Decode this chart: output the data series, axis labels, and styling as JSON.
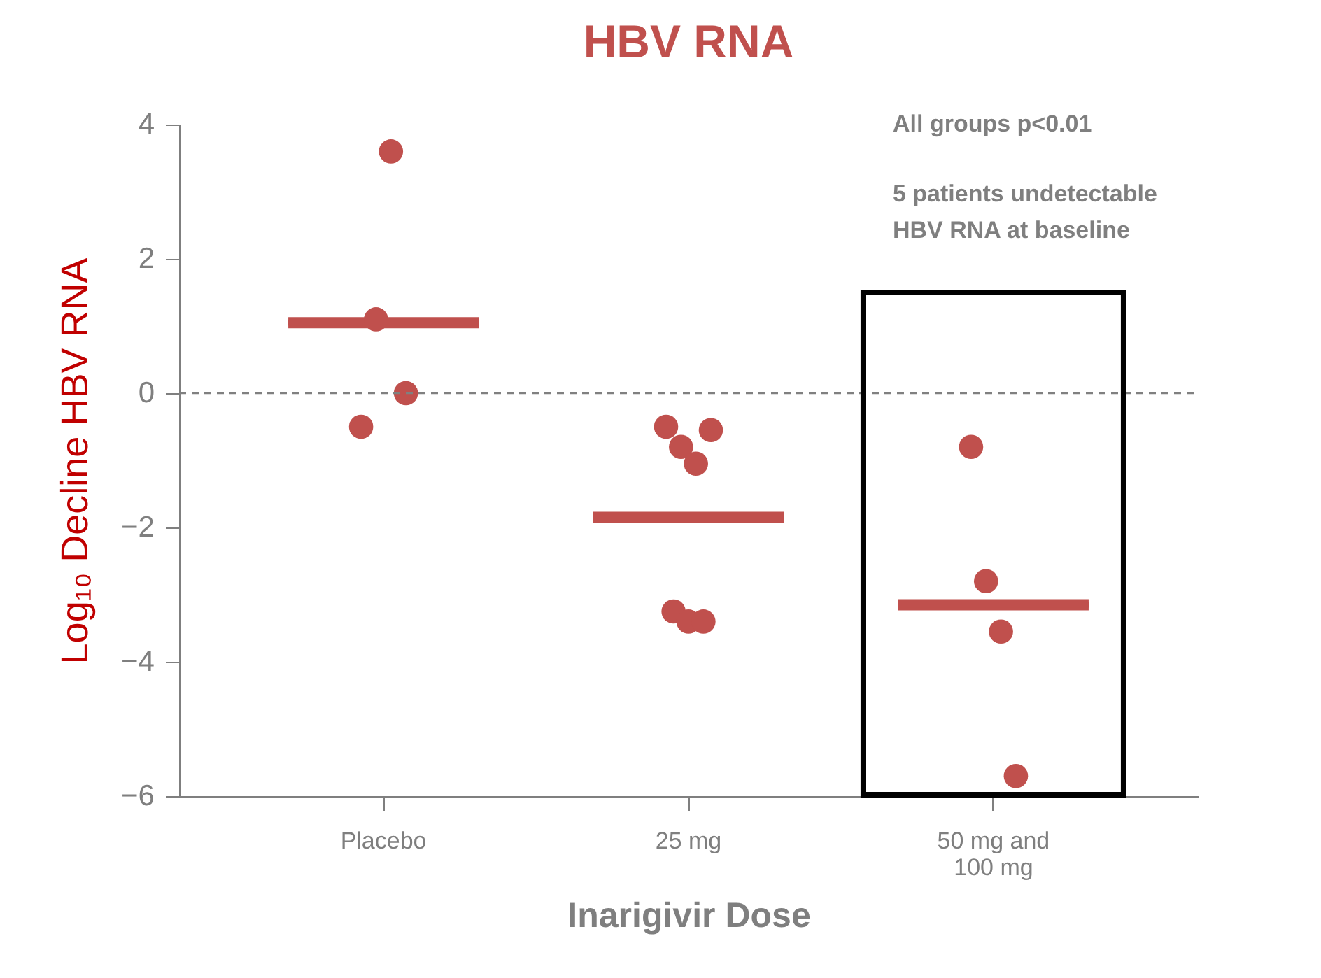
{
  "chart_data": {
    "type": "scatter",
    "title": "HBV RNA",
    "xlabel": "Inarigivir Dose",
    "ylabel": "Log₁₀ Decline HBV RNA",
    "categories": [
      "Placebo",
      "25 mg",
      "50 mg and\n100 mg"
    ],
    "series": [
      {
        "color": "#c0504d",
        "marker": "circle",
        "x": [
          "Placebo",
          "Placebo",
          "Placebo",
          "Placebo",
          "25 mg",
          "25 mg",
          "25 mg",
          "25 mg",
          "25 mg",
          "25 mg",
          "25 mg",
          "50 mg and\n100 mg",
          "50 mg and\n100 mg",
          "50 mg and\n100 mg",
          "50 mg and\n100 mg"
        ],
        "values": [
          -0.5,
          1.1,
          3.6,
          0.0,
          -0.5,
          -3.25,
          -0.8,
          -3.4,
          -1.05,
          -3.4,
          -0.55,
          -0.8,
          -2.8,
          -3.55,
          -5.7
        ]
      },
      {
        "type": "box",
        "color": "#c0504d",
        "boxes": [
          {
            "low": 1.05,
            "q1": 1.05,
            "median": 1.05,
            "q3": 1.05,
            "high": 1.05
          },
          {
            "low": -1.85,
            "q1": -1.85,
            "median": -1.85,
            "q3": -1.85,
            "high": -1.85
          },
          {
            "low": -3.15,
            "q1": -3.15,
            "median": -3.15,
            "q3": -3.15,
            "high": -3.15
          }
        ]
      }
    ],
    "ylim": [
      -6,
      4
    ],
    "yticks": [
      -6,
      -4,
      -2,
      0,
      2,
      4
    ],
    "ref_lines": [
      {
        "axis": "y",
        "value": 0,
        "color": "#808080",
        "line_style": "dashed"
      }
    ],
    "annotations": [
      "All groups p<0.01",
      "5 patients undetectable\nHBV RNA at baseline"
    ],
    "grid": false
  }
}
